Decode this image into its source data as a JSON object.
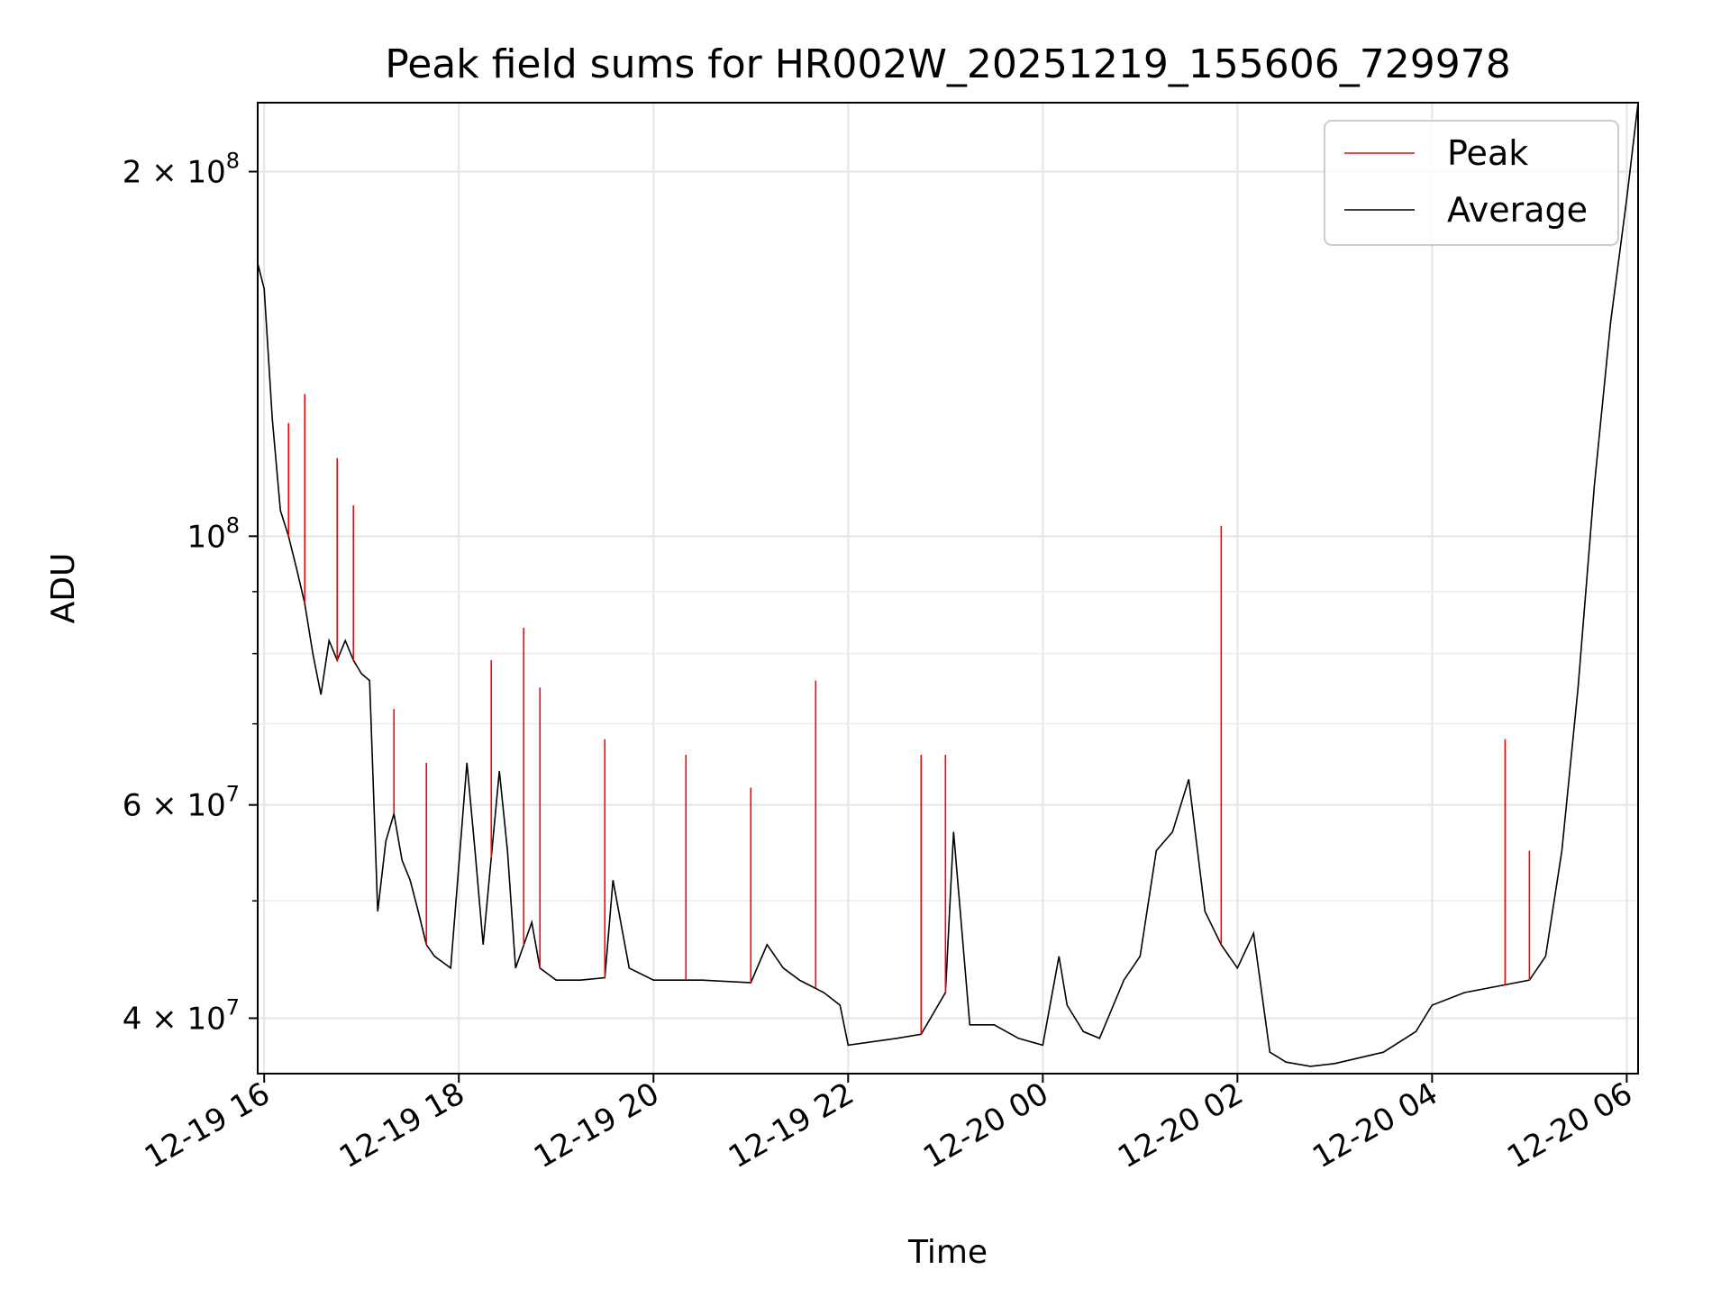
{
  "chart_data": {
    "type": "line",
    "title": "Peak field sums for HR002W_20251219_155606_729978",
    "xlabel": "Time",
    "ylabel": "ADU",
    "yscale": "log",
    "ylim": [
      36000000,
      228000000
    ],
    "xlim": [
      "2025-12-19 15:56",
      "2025-12-20 06:07"
    ],
    "grid": true,
    "legend": {
      "position": "top-right",
      "entries": [
        "Peak",
        "Average"
      ]
    },
    "x_ticks": [
      "12-19 16",
      "12-19 18",
      "12-19 20",
      "12-19 22",
      "12-20 00",
      "12-20 02",
      "12-20 04",
      "12-20 06"
    ],
    "y_ticks": [
      {
        "value": 200000000,
        "base": "2 × 10",
        "exp": "8"
      },
      {
        "value": 100000000,
        "base": "10",
        "exp": "8"
      },
      {
        "value": 60000000,
        "base": "6 × 10",
        "exp": "7"
      },
      {
        "value": 40000000,
        "base": "4 × 10",
        "exp": "7"
      }
    ],
    "x_minor": [],
    "y_minor": [
      90000000,
      80000000,
      70000000,
      50000000
    ],
    "series": [
      {
        "name": "Average",
        "color": "#000000",
        "x": [
          "2025-12-19 15:56",
          "2025-12-19 16:00",
          "2025-12-19 16:05",
          "2025-12-19 16:10",
          "2025-12-19 16:15",
          "2025-12-19 16:20",
          "2025-12-19 16:25",
          "2025-12-19 16:30",
          "2025-12-19 16:35",
          "2025-12-19 16:40",
          "2025-12-19 16:45",
          "2025-12-19 16:50",
          "2025-12-19 16:55",
          "2025-12-19 17:00",
          "2025-12-19 17:05",
          "2025-12-19 17:10",
          "2025-12-19 17:15",
          "2025-12-19 17:20",
          "2025-12-19 17:25",
          "2025-12-19 17:30",
          "2025-12-19 17:35",
          "2025-12-19 17:40",
          "2025-12-19 17:45",
          "2025-12-19 17:55",
          "2025-12-19 18:05",
          "2025-12-19 18:10",
          "2025-12-19 18:15",
          "2025-12-19 18:25",
          "2025-12-19 18:30",
          "2025-12-19 18:35",
          "2025-12-19 18:45",
          "2025-12-19 18:50",
          "2025-12-19 18:55",
          "2025-12-19 19:00",
          "2025-12-19 19:15",
          "2025-12-19 19:30",
          "2025-12-19 19:35",
          "2025-12-19 19:45",
          "2025-12-19 20:00",
          "2025-12-19 20:30",
          "2025-12-19 21:00",
          "2025-12-19 21:10",
          "2025-12-19 21:20",
          "2025-12-19 21:30",
          "2025-12-19 21:45",
          "2025-12-19 21:55",
          "2025-12-19 22:00",
          "2025-12-19 22:30",
          "2025-12-19 22:45",
          "2025-12-19 23:00",
          "2025-12-19 23:05",
          "2025-12-19 23:15",
          "2025-12-19 23:30",
          "2025-12-19 23:45",
          "2025-12-20 00:00",
          "2025-12-20 00:10",
          "2025-12-20 00:15",
          "2025-12-20 00:25",
          "2025-12-20 00:35",
          "2025-12-20 00:50",
          "2025-12-20 01:00",
          "2025-12-20 01:10",
          "2025-12-20 01:20",
          "2025-12-20 01:30",
          "2025-12-20 01:40",
          "2025-12-20 01:50",
          "2025-12-20 02:00",
          "2025-12-20 02:10",
          "2025-12-20 02:20",
          "2025-12-20 02:30",
          "2025-12-20 02:45",
          "2025-12-20 03:00",
          "2025-12-20 03:30",
          "2025-12-20 03:50",
          "2025-12-20 04:00",
          "2025-12-20 04:20",
          "2025-12-20 04:40",
          "2025-12-20 05:00",
          "2025-12-20 05:10",
          "2025-12-20 05:20",
          "2025-12-20 05:30",
          "2025-12-20 05:40",
          "2025-12-20 05:50",
          "2025-12-20 06:00",
          "2025-12-20 06:07"
        ],
        "y": [
          168000000,
          160000000,
          125000000,
          105000000,
          100000000,
          94000000,
          88000000,
          80000000,
          74000000,
          82000000,
          79000000,
          82000000,
          79000000,
          77000000,
          76000000,
          49000000,
          56000000,
          59000000,
          54000000,
          52000000,
          49000000,
          46000000,
          45000000,
          44000000,
          65000000,
          55000000,
          46000000,
          64000000,
          55000000,
          44000000,
          48000000,
          44000000,
          43500000,
          43000000,
          43000000,
          43200000,
          52000000,
          44000000,
          43000000,
          43000000,
          42800000,
          46000000,
          44000000,
          43000000,
          42000000,
          41000000,
          38000000,
          38500000,
          38800000,
          42000000,
          57000000,
          39500000,
          39500000,
          38500000,
          38000000,
          45000000,
          41000000,
          39000000,
          38500000,
          43000000,
          45000000,
          55000000,
          57000000,
          63000000,
          49000000,
          46000000,
          44000000,
          47000000,
          37500000,
          36800000,
          36500000,
          36700000,
          37500000,
          39000000,
          41000000,
          42000000,
          42500000,
          43000000,
          45000000,
          55000000,
          75000000,
          110000000,
          150000000,
          190000000,
          228000000
        ]
      },
      {
        "name": "Peak",
        "color": "#ff0000",
        "x": [
          "2025-12-19 16:15",
          "2025-12-19 16:25",
          "2025-12-19 16:45",
          "2025-12-19 16:55",
          "2025-12-19 17:20",
          "2025-12-19 17:40",
          "2025-12-19 18:20",
          "2025-12-19 18:40",
          "2025-12-19 18:50",
          "2025-12-19 19:30",
          "2025-12-19 20:20",
          "2025-12-19 21:00",
          "2025-12-19 21:40",
          "2025-12-19 22:45",
          "2025-12-19 23:00",
          "2025-12-20 01:50",
          "2025-12-20 04:45",
          "2025-12-20 05:00"
        ],
        "y": [
          124000000,
          131000000,
          116000000,
          106000000,
          72000000,
          65000000,
          79000000,
          84000000,
          75000000,
          68000000,
          66000000,
          62000000,
          76000000,
          66000000,
          66000000,
          102000000,
          68000000,
          55000000
        ]
      }
    ]
  }
}
